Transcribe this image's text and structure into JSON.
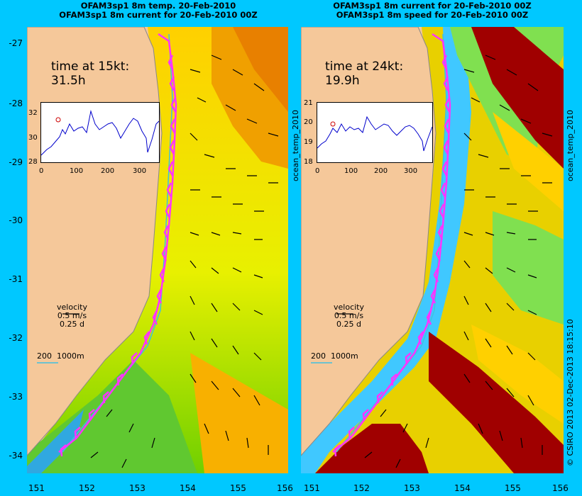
{
  "left_panel": {
    "title_line1": "OFAM3sp1 8m temp. 20-Feb-2010",
    "title_line2": "OFAM3sp1 8m current for 20-Feb-2010 00Z",
    "time_label": "time at 15kt:",
    "time_value": "31.5h",
    "inset_y_ticks": [
      "32",
      "30",
      "28"
    ],
    "inset_x_ticks": [
      "0",
      "100",
      "200",
      "300"
    ],
    "side_label": "ocean_temp_2010"
  },
  "right_panel": {
    "title_line1": "OFAM3sp1 8m current for 20-Feb-2010 00Z",
    "title_line2": "OFAM3sp1 8m speed for 20-Feb-2010 00Z",
    "time_label": "time at 24kt:",
    "time_value": "19.9h",
    "inset_y_ticks": [
      "21",
      "20",
      "19",
      "18"
    ],
    "inset_x_ticks": [
      "0",
      "100",
      "200",
      "300"
    ],
    "side_label": "ocean_temp_2010"
  },
  "legend": {
    "title": "velocity",
    "speed": "0.5 m/s",
    "duration": "0.25 d"
  },
  "depth_legend": {
    "shallow": "200",
    "deep": "1000m"
  },
  "credit": "© CSIRO 2013   02-Dec-2013 18:15:10",
  "lat_ticks": [
    "-27",
    "-28",
    "-29",
    "-30",
    "-31",
    "-32",
    "-33",
    "-34"
  ],
  "lon_ticks": [
    "151",
    "152",
    "153",
    "154",
    "155",
    "156"
  ],
  "colors": {
    "background": "#00c8ff",
    "land": "#f5c89a",
    "route": "#ff33ff",
    "arrow": "#000000"
  }
}
